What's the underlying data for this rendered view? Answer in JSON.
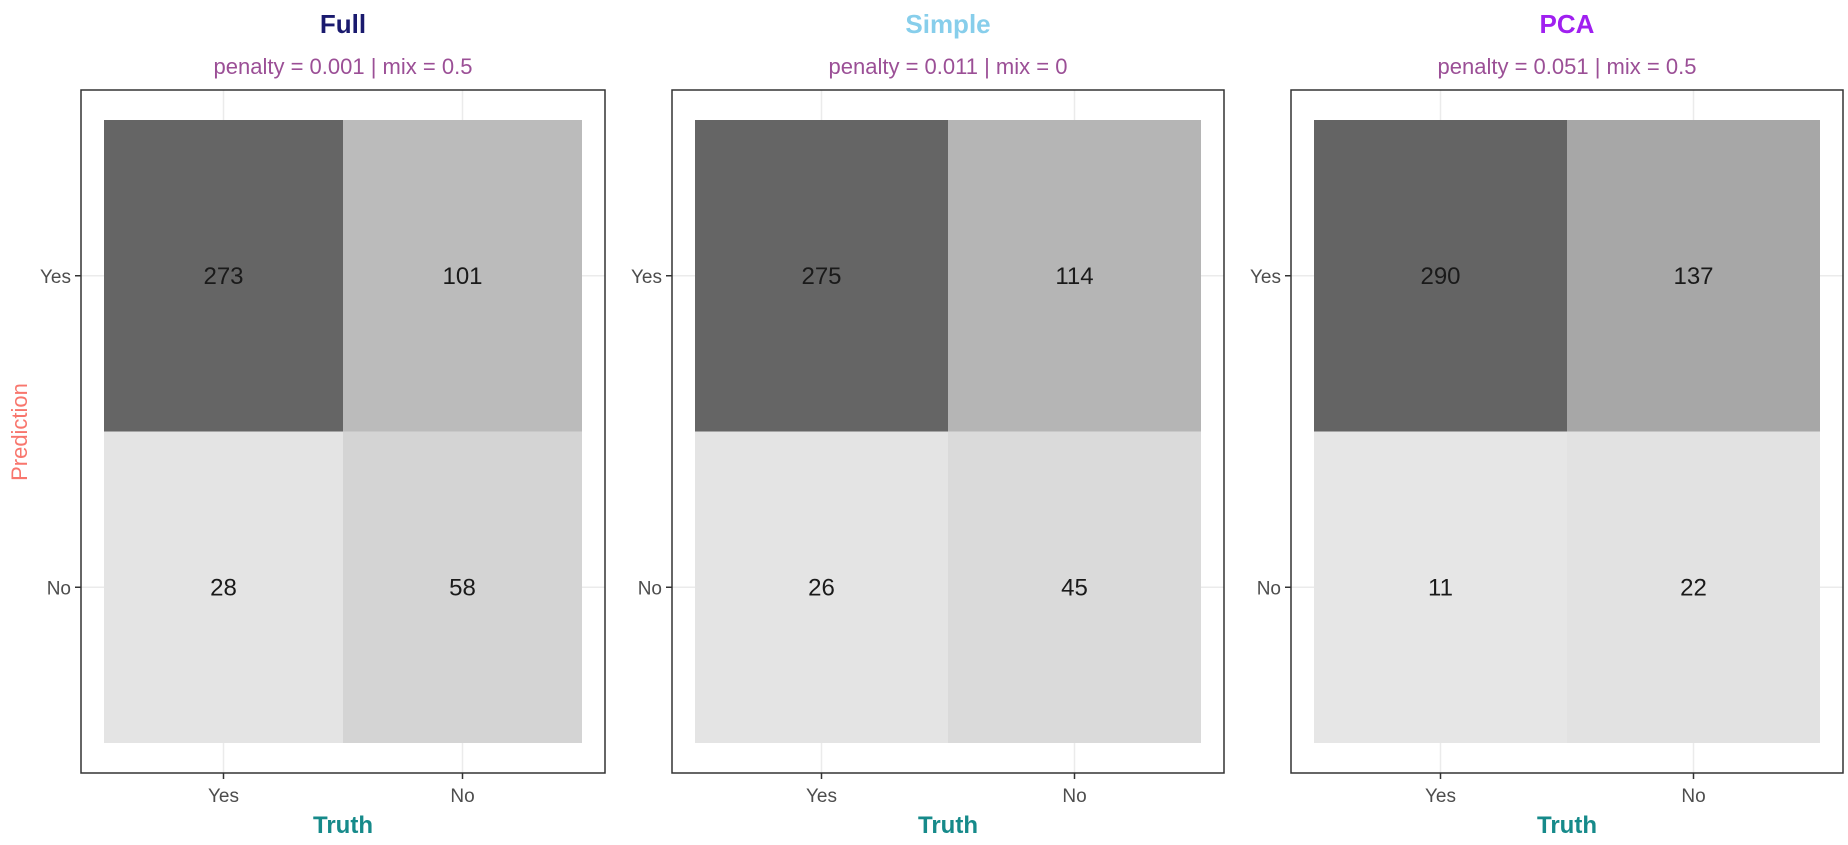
{
  "chart_data": {
    "type": "heatmap",
    "ylabel": "Prediction",
    "xlabel": "Truth",
    "x_categories": [
      "Yes",
      "No"
    ],
    "y_categories": [
      "Yes",
      "No"
    ],
    "grid": true,
    "legend": "none",
    "colors": {
      "ylabel": "#f8766d",
      "xlabel": "#168a8a",
      "subtitle": "#9b4f96",
      "grid": "#ebebeb",
      "border": "#333333"
    },
    "panels": [
      {
        "title": "Full",
        "title_color": "#1a1a6e",
        "subtitle": "penalty = 0.001 | mix = 0.5",
        "cells": [
          {
            "truth": "Yes",
            "prediction": "Yes",
            "value": 273,
            "fill": "#656565"
          },
          {
            "truth": "No",
            "prediction": "Yes",
            "value": 101,
            "fill": "#bbbbbb"
          },
          {
            "truth": "Yes",
            "prediction": "No",
            "value": 28,
            "fill": "#e4e4e4"
          },
          {
            "truth": "No",
            "prediction": "No",
            "value": 58,
            "fill": "#d4d4d4"
          }
        ]
      },
      {
        "title": "Simple",
        "title_color": "#87ceeb",
        "subtitle": "penalty = 0.011 | mix = 0",
        "cells": [
          {
            "truth": "Yes",
            "prediction": "Yes",
            "value": 275,
            "fill": "#656565"
          },
          {
            "truth": "No",
            "prediction": "Yes",
            "value": 114,
            "fill": "#b5b5b5"
          },
          {
            "truth": "Yes",
            "prediction": "No",
            "value": 26,
            "fill": "#e4e4e4"
          },
          {
            "truth": "No",
            "prediction": "No",
            "value": 45,
            "fill": "#dadada"
          }
        ]
      },
      {
        "title": "PCA",
        "title_color": "#a020f0",
        "subtitle": "penalty = 0.051 | mix = 0.5",
        "cells": [
          {
            "truth": "Yes",
            "prediction": "Yes",
            "value": 290,
            "fill": "#646464"
          },
          {
            "truth": "No",
            "prediction": "Yes",
            "value": 137,
            "fill": "#a7a7a7"
          },
          {
            "truth": "Yes",
            "prediction": "No",
            "value": 11,
            "fill": "#e6e6e6"
          },
          {
            "truth": "No",
            "prediction": "No",
            "value": 22,
            "fill": "#e2e2e2"
          }
        ]
      }
    ]
  }
}
